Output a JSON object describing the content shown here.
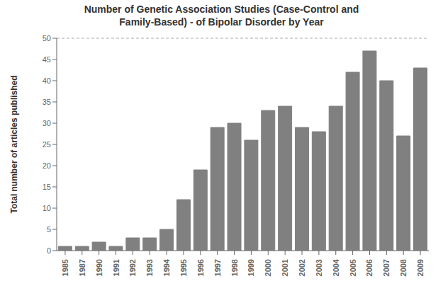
{
  "chart_data": {
    "type": "bar",
    "title": "Number of Genetic Association Studies (Case-Control and\nFamily-Based) - of Bipolar Disorder by Year",
    "ylabel": "Total number of articles published",
    "categories": [
      "1985",
      "1987",
      "1990",
      "1991",
      "1992",
      "1993",
      "1994",
      "1995",
      "1996",
      "1997",
      "1998",
      "1999",
      "2000",
      "2001",
      "2002",
      "2003",
      "2004",
      "2005",
      "2006",
      "2007",
      "2008",
      "2009"
    ],
    "values": [
      1,
      1,
      2,
      1,
      3,
      3,
      5,
      12,
      19,
      29,
      30,
      26,
      33,
      34,
      29,
      28,
      34,
      42,
      47,
      40,
      27,
      43
    ],
    "color": "#808080",
    "ylim": [
      0,
      50
    ],
    "yticks": [
      0,
      5,
      10,
      15,
      20,
      25,
      30,
      35,
      40,
      45,
      50
    ],
    "grid": false
  }
}
